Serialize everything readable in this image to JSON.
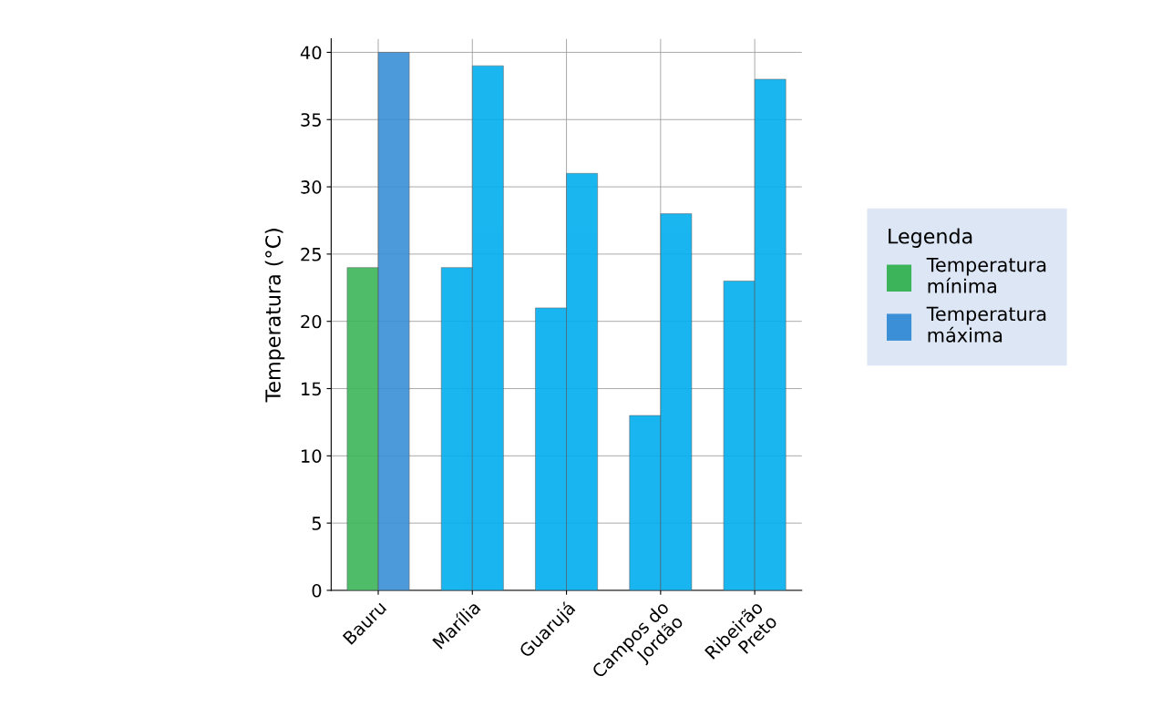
{
  "chart_data": {
    "type": "bar",
    "ylabel": "Temperatura (°C)",
    "legend_title": "Legenda",
    "categories": [
      "Bauru",
      "Marília",
      "Guarujá",
      "Campos do\nJordão",
      "Ribeirão\nPreto"
    ],
    "series": [
      {
        "name": "Temperatura\nmínima",
        "color": "#3cb55a",
        "colors": [
          "#3cb55a",
          "#00aeef",
          "#00aeef",
          "#00aeef",
          "#00aeef"
        ],
        "values": [
          24,
          24,
          21,
          13,
          23
        ]
      },
      {
        "name": "Temperatura\nmáxima",
        "color": "#3a8fd6",
        "colors": [
          "#3a8fd6",
          "#00aeef",
          "#00aeef",
          "#00aeef",
          "#00aeef"
        ],
        "values": [
          40,
          39,
          31,
          28,
          38
        ]
      }
    ],
    "ylim": [
      0,
      41
    ],
    "yticks": [
      0,
      5,
      10,
      15,
      20,
      25,
      30,
      35,
      40
    ],
    "grid": true,
    "legend": "right"
  }
}
